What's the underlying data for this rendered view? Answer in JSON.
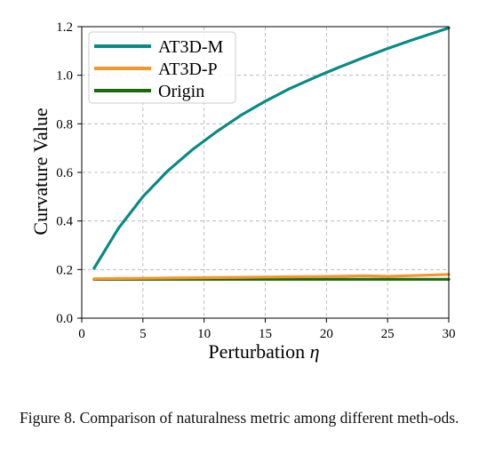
{
  "chart_data": {
    "type": "line",
    "xlabel": "Perturbation η",
    "ylabel": "Curvature Value",
    "xlim": [
      0,
      30
    ],
    "ylim": [
      0,
      1.2
    ],
    "xticks": [
      0,
      5,
      10,
      15,
      20,
      25,
      30
    ],
    "yticks": [
      0.0,
      0.2,
      0.4,
      0.6,
      0.8,
      1.0,
      1.2
    ],
    "xtick_labels": [
      "0",
      "5",
      "10",
      "15",
      "20",
      "25",
      "30"
    ],
    "ytick_labels": [
      "0.0",
      "0.2",
      "0.4",
      "0.6",
      "0.8",
      "1.0",
      "1.2"
    ],
    "grid": true,
    "legend_position": "top-left",
    "x": [
      1,
      3,
      5,
      7,
      9,
      11,
      13,
      15,
      17,
      19,
      21,
      23,
      25,
      27,
      29,
      30
    ],
    "series": [
      {
        "name": "AT3D-M",
        "color": "#088a85",
        "values": [
          0.205,
          0.37,
          0.5,
          0.605,
          0.692,
          0.767,
          0.835,
          0.893,
          0.945,
          0.99,
          1.032,
          1.072,
          1.11,
          1.145,
          1.178,
          1.195
        ]
      },
      {
        "name": "AT3D-P",
        "color": "#f5952d",
        "values": [
          0.162,
          0.163,
          0.164,
          0.165,
          0.166,
          0.167,
          0.168,
          0.169,
          0.17,
          0.171,
          0.172,
          0.174,
          0.172,
          0.175,
          0.178,
          0.18
        ]
      },
      {
        "name": "Origin",
        "color": "#1a6a0c",
        "values": [
          0.16,
          0.16,
          0.16,
          0.16,
          0.16,
          0.16,
          0.16,
          0.16,
          0.16,
          0.16,
          0.16,
          0.16,
          0.16,
          0.16,
          0.16,
          0.16
        ]
      }
    ]
  },
  "caption": {
    "text": "Figure 8. Comparison of naturalness metric among different meth-ods."
  }
}
